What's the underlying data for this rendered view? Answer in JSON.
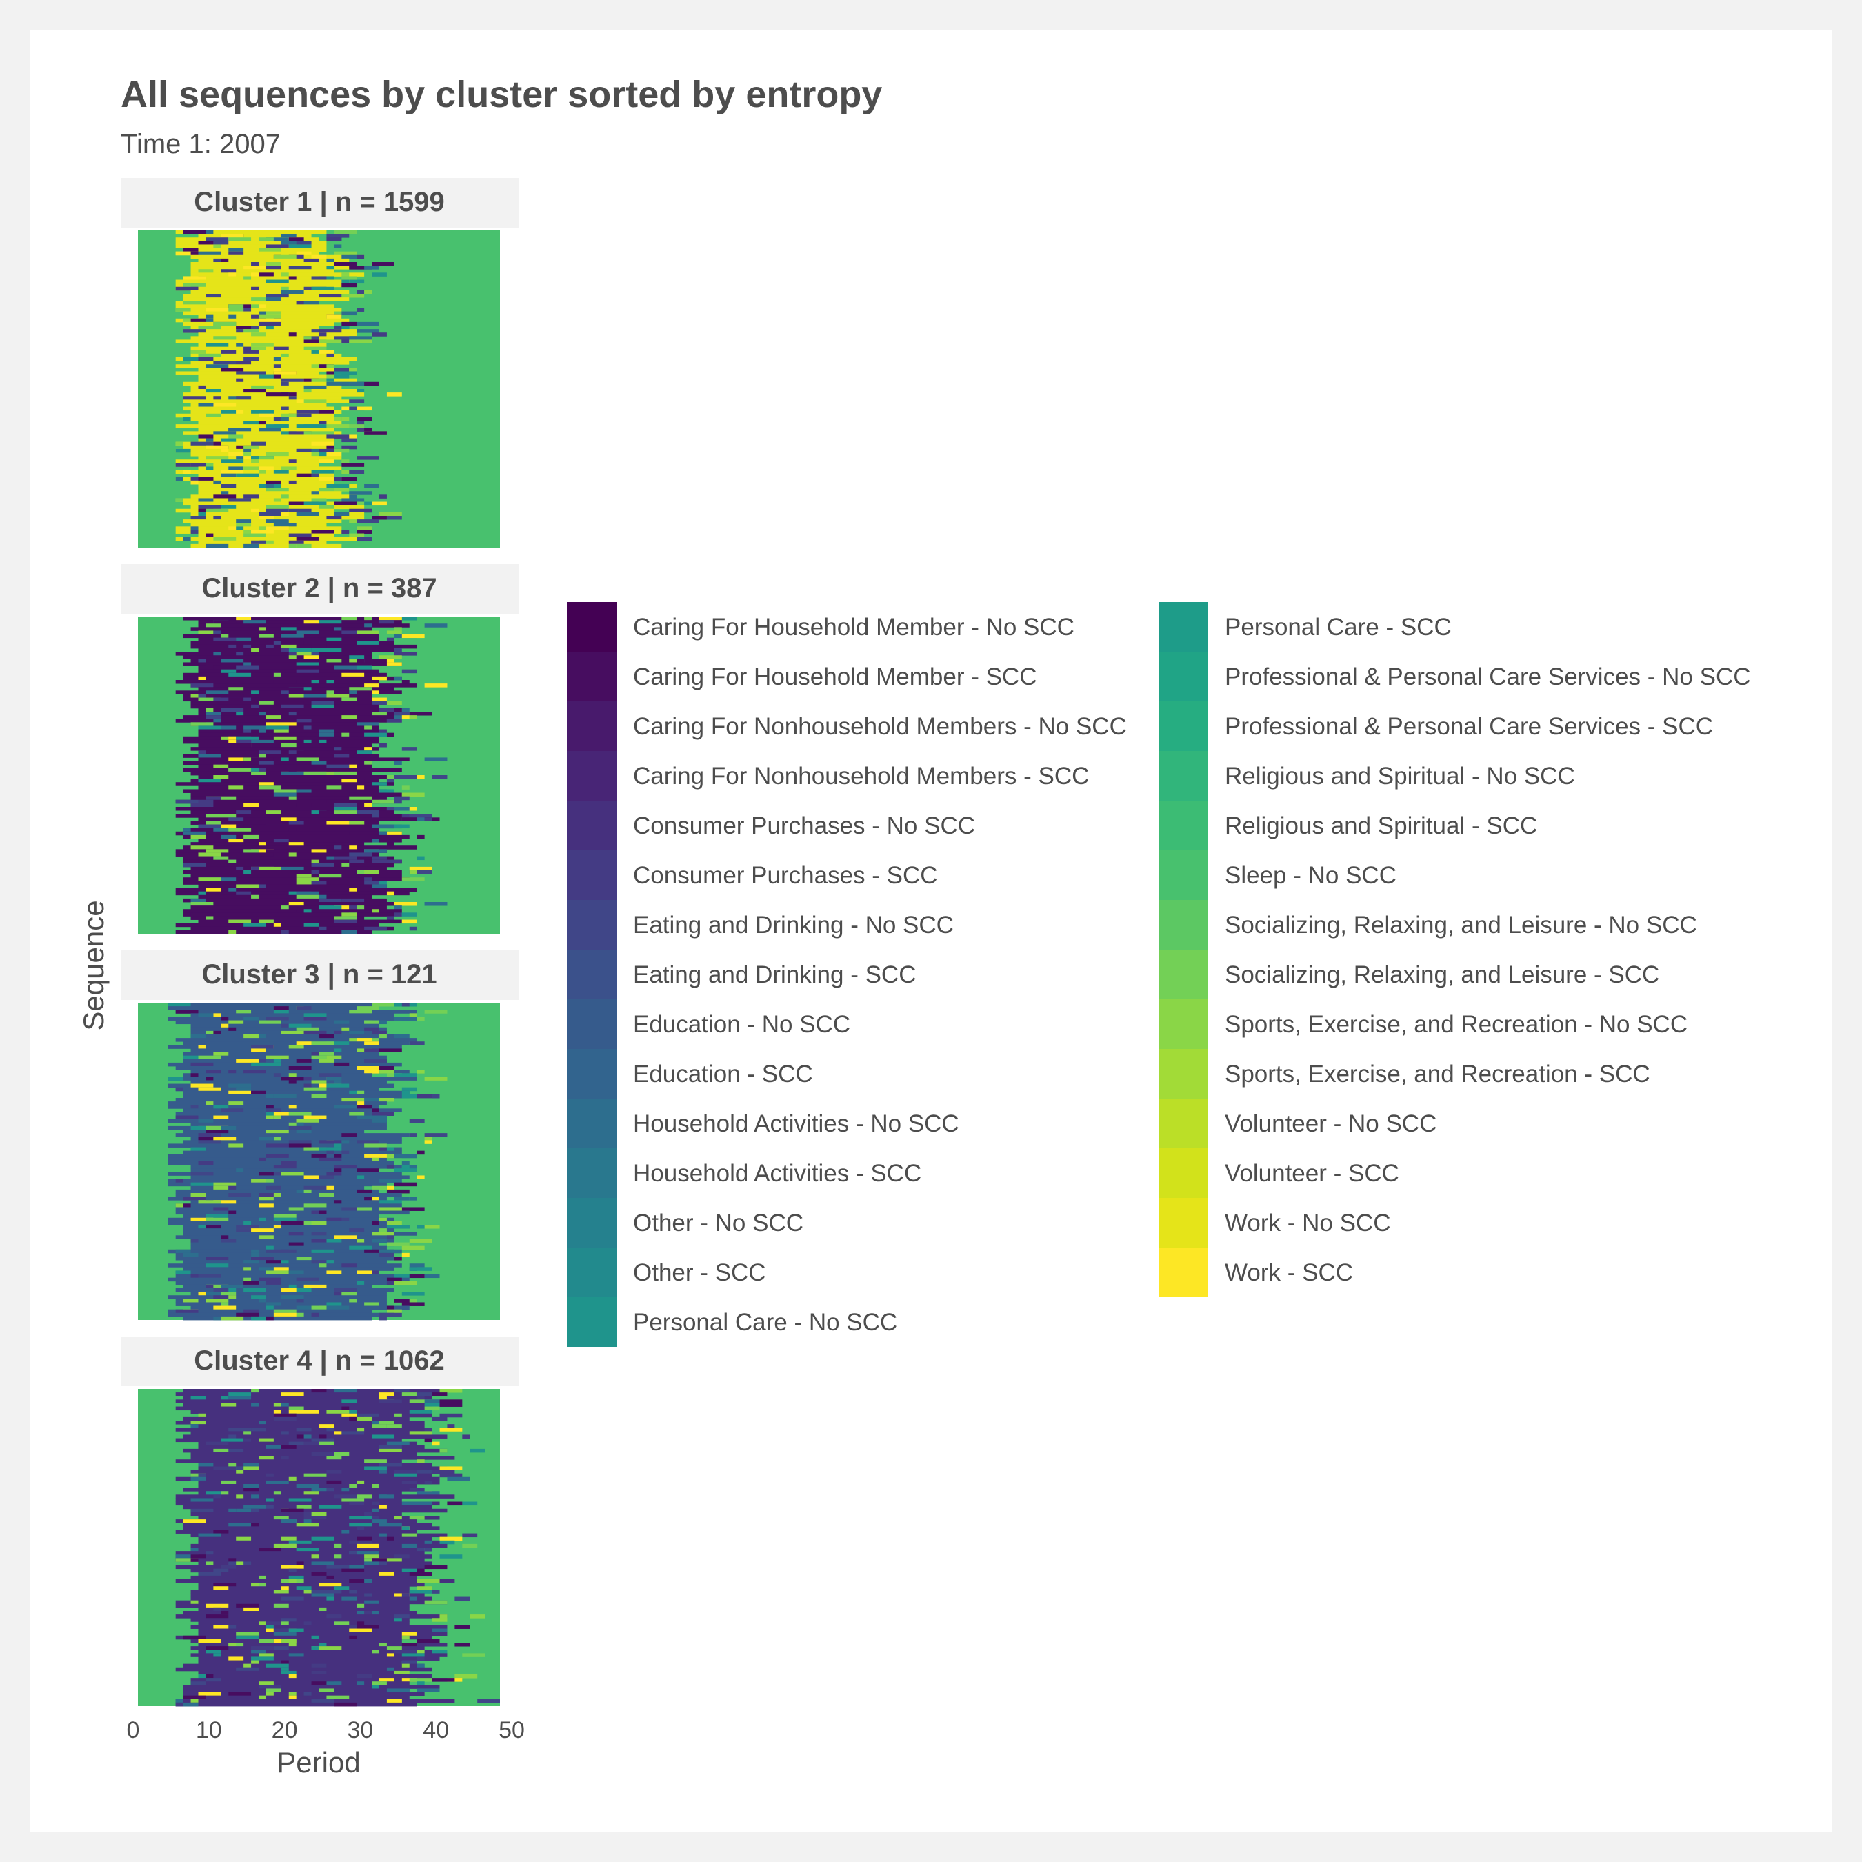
{
  "chart_data": {
    "type": "heatmap",
    "title": "All sequences by cluster sorted by entropy",
    "subtitle": "Time 1: 2007",
    "xlabel": "Period",
    "ylabel": "Sequence",
    "xlim": [
      0,
      50
    ],
    "x_ticks": [
      0,
      10,
      20,
      30,
      40,
      50
    ],
    "legend_position": "right",
    "states": [
      {
        "label": "Caring For Household Member - No SCC",
        "color": "#440154"
      },
      {
        "label": "Caring For Household Member - SCC",
        "color": "#470D60"
      },
      {
        "label": "Caring For Nonhousehold Members - No SCC",
        "color": "#481A6C"
      },
      {
        "label": "Caring For Nonhousehold Members - SCC",
        "color": "#482576"
      },
      {
        "label": "Consumer Purchases - No SCC",
        "color": "#46307E"
      },
      {
        "label": "Consumer Purchases - SCC",
        "color": "#443B84"
      },
      {
        "label": "Eating and Drinking - No SCC",
        "color": "#404688"
      },
      {
        "label": "Eating and Drinking - SCC",
        "color": "#3B518B"
      },
      {
        "label": "Education - No SCC",
        "color": "#365B8C"
      },
      {
        "label": "Education - SCC",
        "color": "#32648E"
      },
      {
        "label": "Household Activities - No SCC",
        "color": "#2D6E8E"
      },
      {
        "label": "Household Activities - SCC",
        "color": "#29788E"
      },
      {
        "label": "Other - No SCC",
        "color": "#25818E"
      },
      {
        "label": "Other - SCC",
        "color": "#228A8D"
      },
      {
        "label": "Personal Care - No SCC",
        "color": "#1F948C"
      },
      {
        "label": "Personal Care - SCC",
        "color": "#1E9C89"
      },
      {
        "label": "Professional & Personal Care Services - No SCC",
        "color": "#20A486"
      },
      {
        "label": "Professional & Personal Care Services - SCC",
        "color": "#26AD81"
      },
      {
        "label": "Religious and Spiritual - No SCC",
        "color": "#31B57B"
      },
      {
        "label": "Religious and Spiritual - SCC",
        "color": "#3CBC74"
      },
      {
        "label": "Sleep - No SCC",
        "color": "#48C16E"
      },
      {
        "label": "Socializing, Relaxing, and Leisure - No SCC",
        "color": "#5CC863"
      },
      {
        "label": "Socializing, Relaxing, and Leisure - SCC",
        "color": "#73D056"
      },
      {
        "label": "Sports, Exercise, and Recreation - No SCC",
        "color": "#8AD647"
      },
      {
        "label": "Sports, Exercise, and Recreation - SCC",
        "color": "#A2DB37"
      },
      {
        "label": "Volunteer - No SCC",
        "color": "#BBDF27"
      },
      {
        "label": "Volunteer - SCC",
        "color": "#D2E21B"
      },
      {
        "label": "Work - No SCC",
        "color": "#E5E419"
      },
      {
        "label": "Work - SCC",
        "color": "#FDE725"
      }
    ],
    "panels": [
      {
        "cluster": "Cluster 1",
        "n_label": "| n =  1599",
        "n": 1599,
        "dominant_states": [
          "Sleep - No SCC",
          "Work - No SCC"
        ],
        "core_periods": [
          5,
          28
        ]
      },
      {
        "cluster": "Cluster 2",
        "n_label": "| n =  387",
        "n": 387,
        "dominant_states": [
          "Sleep - No SCC",
          "Caring For Household Member - SCC"
        ],
        "core_periods": [
          5,
          35
        ]
      },
      {
        "cluster": "Cluster 3",
        "n_label": "| n =  121",
        "n": 121,
        "dominant_states": [
          "Sleep - No SCC",
          "Education - No SCC"
        ],
        "core_periods": [
          4,
          35
        ]
      },
      {
        "cluster": "Cluster 4",
        "n_label": "| n =  1062",
        "n": 1062,
        "dominant_states": [
          "Sleep - No SCC",
          "Consumer Purchases - No SCC"
        ],
        "core_periods": [
          5,
          40
        ]
      }
    ]
  }
}
